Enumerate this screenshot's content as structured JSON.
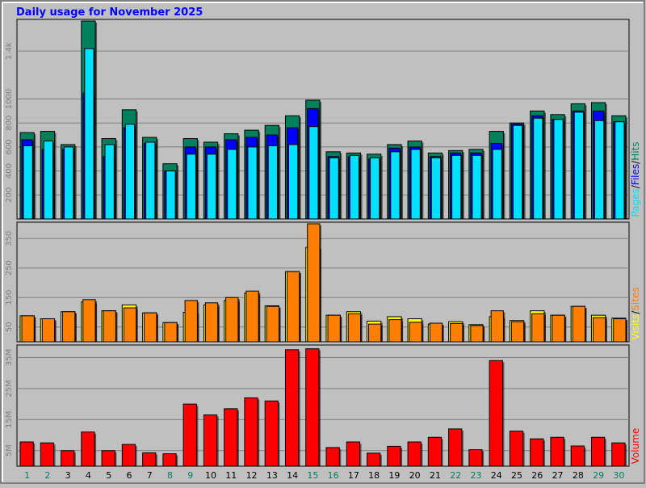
{
  "title": "Daily usage for November 2025",
  "colors": {
    "frame_bg": "#c0c0c0",
    "hits": "#00805c",
    "files": "#0000ff",
    "pages": "#00e0ff",
    "visits": "#ffff00",
    "sites": "#ff8000",
    "volume": "#ff0000",
    "title": "#0000ff",
    "weekend_label": "#00805c"
  },
  "labels": {
    "panel1_right": [
      "Pages",
      "/",
      "Files",
      "/",
      "Hits"
    ],
    "panel2_right": [
      "Visits",
      "/",
      "Sites"
    ],
    "panel3_right": "Volume"
  },
  "chart_data": [
    {
      "type": "bar",
      "title": "Daily usage for November 2025",
      "panel": "hits_files_pages",
      "categories": [
        "1",
        "2",
        "3",
        "4",
        "5",
        "6",
        "7",
        "8",
        "9",
        "10",
        "11",
        "12",
        "13",
        "14",
        "15",
        "16",
        "17",
        "18",
        "19",
        "20",
        "21",
        "22",
        "23",
        "24",
        "25",
        "26",
        "27",
        "28",
        "29",
        "30"
      ],
      "weekend_days": [
        "1",
        "2",
        "8",
        "9",
        "15",
        "16",
        "22",
        "23",
        "29",
        "30"
      ],
      "y_ticks": [
        "200",
        "400",
        "600",
        "800",
        "1000",
        "1.4k"
      ],
      "y_tick_values": [
        200,
        400,
        600,
        800,
        1000,
        1400
      ],
      "ylim": [
        0,
        1650
      ],
      "series": [
        {
          "name": "Hits",
          "values": [
            720,
            730,
            620,
            1650,
            670,
            910,
            680,
            460,
            670,
            640,
            710,
            740,
            780,
            860,
            990,
            560,
            550,
            540,
            620,
            650,
            550,
            570,
            580,
            730,
            800,
            900,
            870,
            960,
            970,
            860
          ]
        },
        {
          "name": "Files",
          "values": [
            660,
            580,
            580,
            1050,
            520,
            760,
            630,
            400,
            600,
            600,
            660,
            680,
            700,
            760,
            920,
            520,
            520,
            500,
            590,
            600,
            520,
            550,
            550,
            630,
            790,
            860,
            830,
            900,
            900,
            810
          ]
        },
        {
          "name": "Pages",
          "values": [
            610,
            650,
            600,
            1420,
            620,
            790,
            640,
            400,
            540,
            540,
            580,
            600,
            610,
            620,
            770,
            510,
            530,
            510,
            560,
            580,
            510,
            530,
            530,
            580,
            780,
            840,
            830,
            890,
            820,
            810
          ]
        }
      ]
    },
    {
      "type": "bar",
      "panel": "visits_sites",
      "categories": [
        "1",
        "2",
        "3",
        "4",
        "5",
        "6",
        "7",
        "8",
        "9",
        "10",
        "11",
        "12",
        "13",
        "14",
        "15",
        "16",
        "17",
        "18",
        "19",
        "20",
        "21",
        "22",
        "23",
        "24",
        "25",
        "26",
        "27",
        "28",
        "29",
        "30"
      ],
      "y_ticks": [
        "50",
        "150",
        "250",
        "350"
      ],
      "y_tick_values": [
        50,
        150,
        250,
        350
      ],
      "ylim": [
        0,
        400
      ],
      "series": [
        {
          "name": "Visits",
          "values": [
            88,
            78,
            102,
            135,
            105,
            125,
            98,
            65,
            100,
            125,
            140,
            165,
            122,
            238,
            320,
            90,
            102,
            70,
            85,
            78,
            60,
            68,
            58,
            85,
            72,
            105,
            90,
            120,
            90,
            80
          ]
        },
        {
          "name": "Sites",
          "values": [
            88,
            78,
            102,
            143,
            105,
            115,
            98,
            65,
            140,
            132,
            150,
            172,
            120,
            238,
            400,
            90,
            95,
            60,
            75,
            66,
            63,
            62,
            55,
            105,
            68,
            95,
            90,
            120,
            82,
            78
          ]
        }
      ]
    },
    {
      "type": "bar",
      "panel": "volume",
      "categories": [
        "1",
        "2",
        "3",
        "4",
        "5",
        "6",
        "7",
        "8",
        "9",
        "10",
        "11",
        "12",
        "13",
        "14",
        "15",
        "16",
        "17",
        "18",
        "19",
        "20",
        "21",
        "22",
        "23",
        "24",
        "25",
        "26",
        "27",
        "28",
        "29",
        "30"
      ],
      "y_ticks": [
        "5M",
        "15M",
        "25M",
        "35M"
      ],
      "y_tick_values": [
        5,
        15,
        25,
        35
      ],
      "ylim": [
        0,
        38.5
      ],
      "series": [
        {
          "name": "Volume",
          "values": [
            7.8,
            7.5,
            5.0,
            11.0,
            5.0,
            7.0,
            4.3,
            4.0,
            20.0,
            16.5,
            18.5,
            22.0,
            21.0,
            37.5,
            37.8,
            6.0,
            7.8,
            4.2,
            6.4,
            7.8,
            9.3,
            12.0,
            5.3,
            34.0,
            11.3,
            8.8,
            9.3,
            6.5,
            9.3,
            7.5
          ]
        }
      ]
    }
  ]
}
